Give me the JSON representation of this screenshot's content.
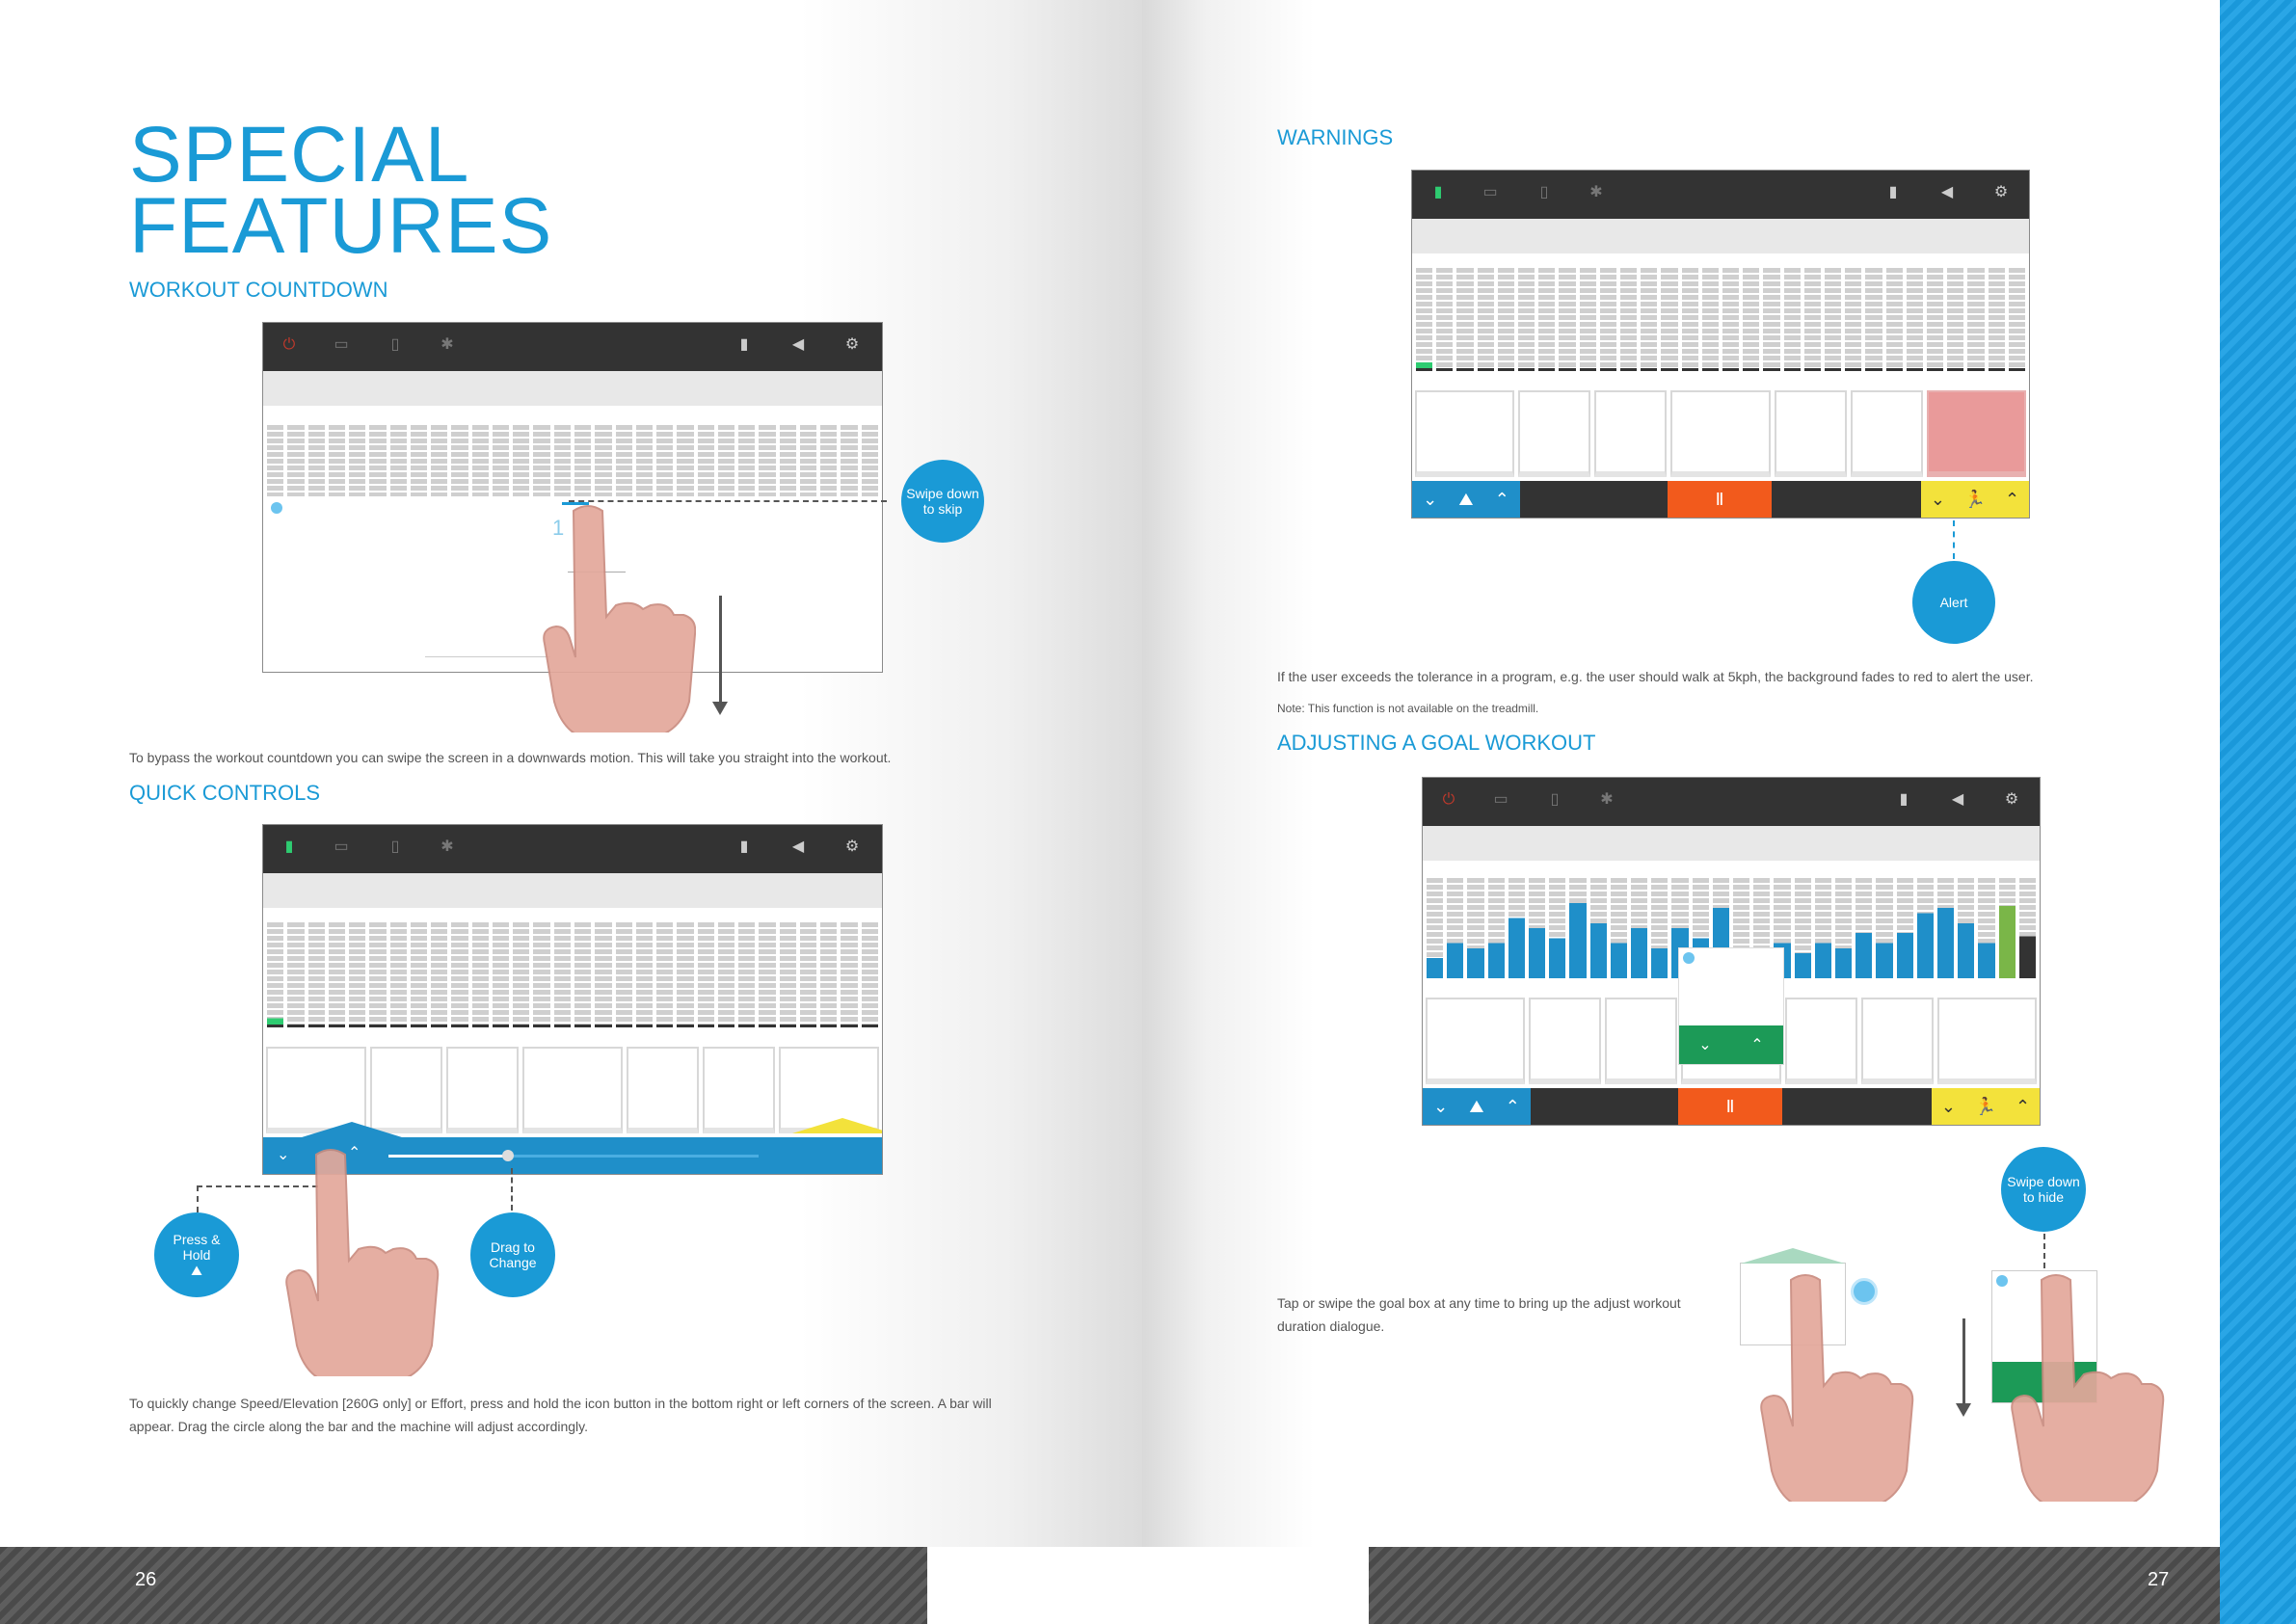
{
  "left_page": {
    "title_line1": "SPECIAL",
    "title_line2": "FEATURES",
    "workout_countdown": {
      "heading": "WORKOUT COUNTDOWN",
      "callout": "Swipe down to skip",
      "body": "To bypass the workout countdown you can swipe the screen in a downwards motion. This will take you straight into the workout."
    },
    "quick_controls": {
      "heading": "QUICK CONTROLS",
      "callout_press": "Press & Hold",
      "callout_drag": "Drag to Change",
      "body": "To quickly change Speed/Elevation [260G only] or Effort, press and hold the icon button in the bottom right or left corners of the screen. A bar will appear. Drag the circle along the bar and the machine will adjust accordingly."
    },
    "page_number": "26"
  },
  "right_page": {
    "warnings": {
      "heading": "WARNINGS",
      "callout": "Alert",
      "body": "If the user exceeds the tolerance in a program, e.g. the user should walk  at 5kph, the background fades to red to alert the user.",
      "note": "Note: This function is not available on the treadmill."
    },
    "adjusting": {
      "heading": "ADJUSTING A GOAL WORKOUT",
      "callout": "Swipe down to hide",
      "body": "Tap or swipe the goal box at any time to bring up the adjust workout duration dialogue."
    },
    "page_number": "27"
  },
  "icons": [
    "power-icon",
    "monitor-icon",
    "phone-icon",
    "fan-icon",
    "battery-icon",
    "speaker-icon",
    "settings-icon",
    "chevron-down-icon",
    "chevron-up-icon",
    "incline-icon",
    "runner-icon",
    "pause-icon",
    "hand-pointer-icon"
  ],
  "colors": {
    "accent": "#1a9ad6",
    "alert": "#f25a1c",
    "warning_tile": "#e99a9a",
    "yellow": "#f3e23b",
    "green": "#1c9a57"
  }
}
